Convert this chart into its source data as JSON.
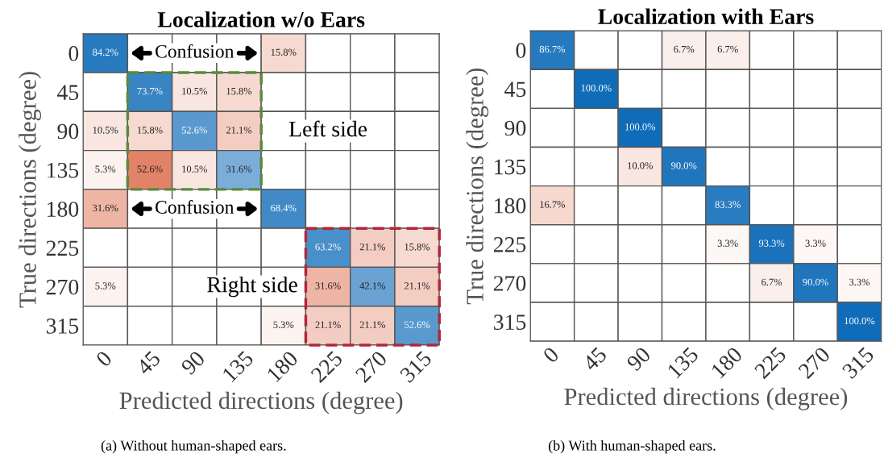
{
  "chart_data": [
    {
      "type": "heatmap",
      "title": "Localization w/o Ears",
      "xlabel": "Predicted directions (degree)",
      "ylabel": "True directions (degree)",
      "categories": [
        "0",
        "45",
        "90",
        "135",
        "180",
        "225",
        "270",
        "315"
      ],
      "y_categories": [
        "0",
        "45",
        "90",
        "135",
        "180",
        "225",
        "270",
        "315"
      ],
      "cells": [
        [
          84.2,
          null,
          null,
          null,
          15.8,
          null,
          null,
          null
        ],
        [
          null,
          73.7,
          10.5,
          15.8,
          null,
          null,
          null,
          null
        ],
        [
          10.5,
          15.8,
          52.6,
          21.1,
          null,
          null,
          null,
          null
        ],
        [
          5.3,
          52.6,
          10.5,
          31.6,
          null,
          null,
          null,
          null
        ],
        [
          31.6,
          null,
          null,
          null,
          68.4,
          null,
          null,
          null
        ],
        [
          null,
          null,
          null,
          null,
          null,
          63.2,
          21.1,
          15.8
        ],
        [
          5.3,
          null,
          null,
          null,
          null,
          31.6,
          42.1,
          21.1
        ],
        [
          null,
          null,
          null,
          null,
          5.3,
          21.1,
          21.1,
          52.6
        ]
      ],
      "cell_labels": [
        [
          "84.2%",
          null,
          null,
          null,
          "15.8%",
          null,
          null,
          null
        ],
        [
          null,
          "73.7%",
          "10.5%",
          "15.8%",
          null,
          null,
          null,
          null
        ],
        [
          "10.5%",
          "15.8%",
          "52.6%",
          "21.1%",
          null,
          null,
          null,
          null
        ],
        [
          "5.3%",
          "52.6%",
          "10.5%",
          "31.6%",
          null,
          null,
          null,
          null
        ],
        [
          "31.6%",
          null,
          null,
          null,
          "68.4%",
          null,
          null,
          null
        ],
        [
          null,
          null,
          null,
          null,
          null,
          "63.2%",
          "21.1%",
          "15.8%"
        ],
        [
          "5.3%",
          null,
          null,
          null,
          null,
          "31.6%",
          "42.1%",
          "21.1%"
        ],
        [
          null,
          null,
          null,
          null,
          "5.3%",
          "21.1%",
          "21.1%",
          "52.6%"
        ]
      ],
      "annotations": [
        "Confusion",
        "Confusion",
        "Left side",
        "Right side",
        "(a) Without human-shaped ears."
      ]
    },
    {
      "type": "heatmap",
      "title": "Localization with Ears",
      "xlabel": "Predicted directions (degree)",
      "ylabel": "True directions (degree)",
      "categories": [
        "0",
        "45",
        "90",
        "135",
        "180",
        "225",
        "270",
        "315"
      ],
      "y_categories": [
        "0",
        "45",
        "90",
        "135",
        "180",
        "225",
        "270",
        "315"
      ],
      "cells": [
        [
          86.7,
          null,
          null,
          6.7,
          6.7,
          null,
          null,
          null
        ],
        [
          null,
          100.0,
          null,
          null,
          null,
          null,
          null,
          null
        ],
        [
          null,
          null,
          100.0,
          null,
          null,
          null,
          null,
          null
        ],
        [
          null,
          null,
          10.0,
          90.0,
          null,
          null,
          null,
          null
        ],
        [
          16.7,
          null,
          null,
          null,
          83.3,
          null,
          null,
          null
        ],
        [
          null,
          null,
          null,
          null,
          3.3,
          93.3,
          3.3,
          null
        ],
        [
          null,
          null,
          null,
          null,
          null,
          6.7,
          90.0,
          3.3
        ],
        [
          null,
          null,
          null,
          null,
          null,
          null,
          null,
          100.0
        ]
      ],
      "cell_labels": [
        [
          "86.7%",
          null,
          null,
          "6.7%",
          "6.7%",
          null,
          null,
          null
        ],
        [
          null,
          "100.0%",
          null,
          null,
          null,
          null,
          null,
          null
        ],
        [
          null,
          null,
          "100.0%",
          null,
          null,
          null,
          null,
          null
        ],
        [
          null,
          null,
          "10.0%",
          "90.0%",
          null,
          null,
          null,
          null
        ],
        [
          "16.7%",
          null,
          null,
          null,
          "83.3%",
          null,
          null,
          null
        ],
        [
          null,
          null,
          null,
          null,
          "3.3%",
          "93.3%",
          "3.3%",
          null
        ],
        [
          null,
          null,
          null,
          null,
          null,
          "6.7%",
          "90.0%",
          "3.3%"
        ],
        [
          null,
          null,
          null,
          null,
          null,
          null,
          null,
          "100.0%"
        ]
      ],
      "annotations": [
        "(b) With human-shaped ears."
      ]
    }
  ]
}
